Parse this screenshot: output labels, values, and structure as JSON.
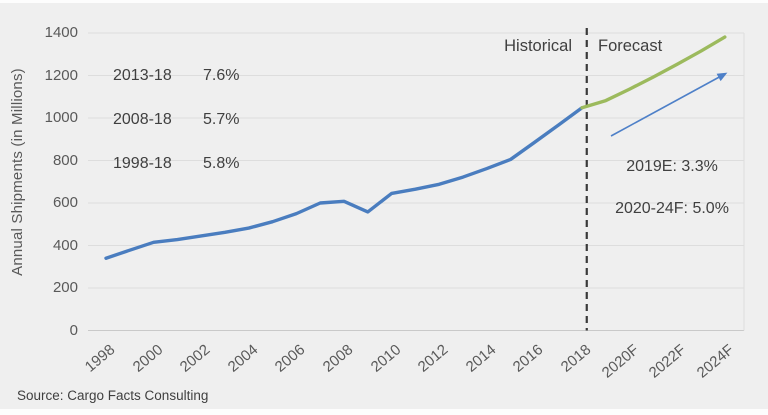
{
  "chart_data": {
    "type": "line",
    "ylabel": "Annual Shipments (in Millions)",
    "ylim": [
      0,
      1400
    ],
    "y_ticks": [
      1400,
      1200,
      1000,
      800,
      600,
      400,
      200,
      0
    ],
    "x_tick_labels": [
      "1998",
      "2000",
      "2002",
      "2004",
      "2006",
      "2008",
      "2010",
      "2012",
      "2014",
      "2016",
      "2018",
      "2020F",
      "2022F",
      "2024F"
    ],
    "grid": "horizontal",
    "divider_year": 2018.2,
    "series": [
      {
        "name": "Historical",
        "color": "#4a7dbf",
        "x": [
          1998,
          1999,
          2000,
          2001,
          2002,
          2003,
          2004,
          2005,
          2006,
          2007,
          2008,
          2009,
          2010,
          2011,
          2012,
          2013,
          2014,
          2015,
          2016,
          2017,
          2018
        ],
        "values": [
          340,
          378,
          415,
          428,
          445,
          462,
          482,
          512,
          550,
          600,
          608,
          558,
          645,
          665,
          688,
          722,
          762,
          805,
          885,
          966,
          1048
        ]
      },
      {
        "name": "Forecast",
        "color": "#9cba5d",
        "x": [
          2018,
          2019,
          2020,
          2021,
          2022,
          2023,
          2024
        ],
        "values": [
          1048,
          1082,
          1136,
          1193,
          1253,
          1315,
          1381
        ]
      }
    ],
    "annotations": {
      "zone_historical": "Historical",
      "zone_forecast": "Forecast",
      "cagr_rows": [
        {
          "period": "2013-18",
          "value": "7.6%"
        },
        {
          "period": "2008-18",
          "value": "5.7%"
        },
        {
          "period": "1998-18",
          "value": "5.8%"
        }
      ],
      "forecast_notes": [
        "2019E: 3.3%",
        "2020-24F: 5.0%"
      ],
      "arrow_color": "#4e80c8",
      "divider_color": "#3a3a3a"
    },
    "source": "Source: Cargo Facts Consulting"
  }
}
